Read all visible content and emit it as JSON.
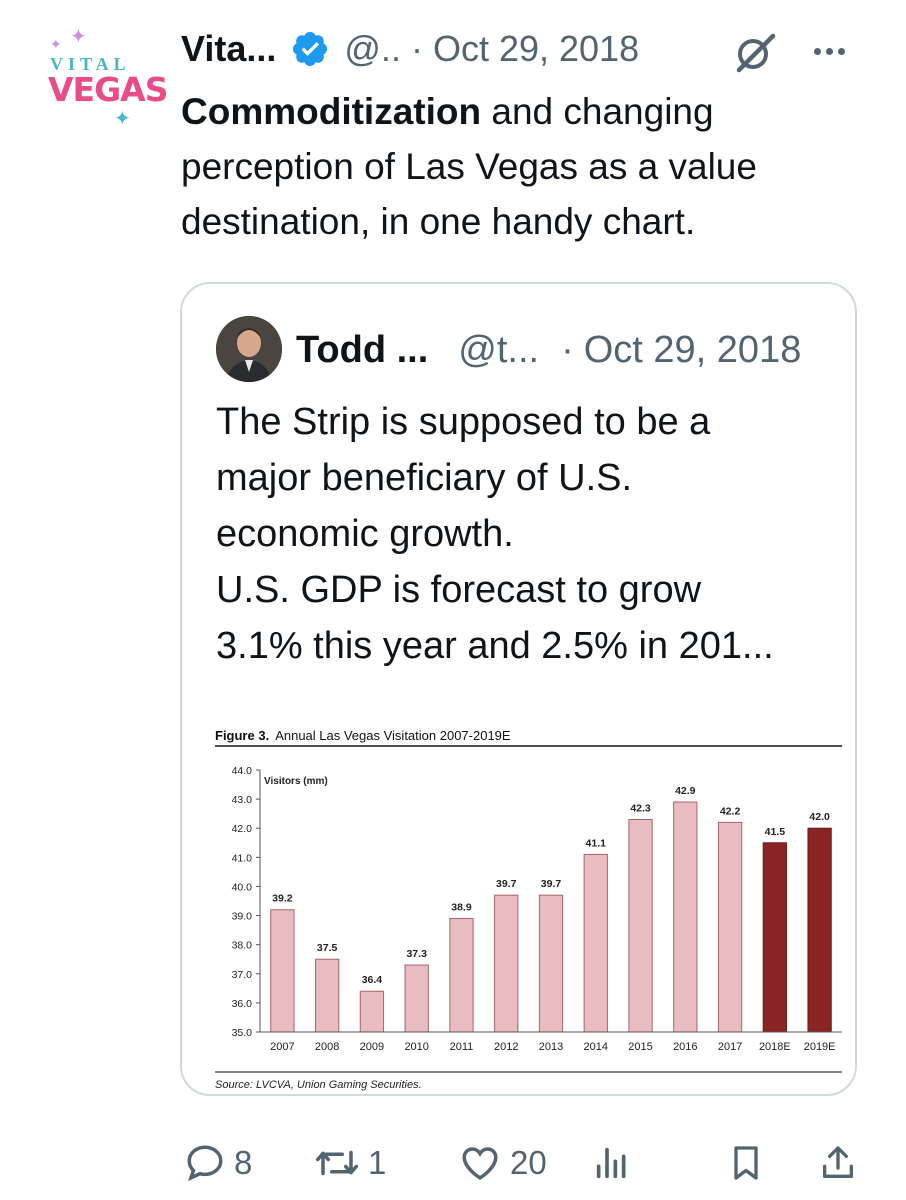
{
  "tweet": {
    "author_name": "Vita...",
    "handle": "@..",
    "separator": "·",
    "date": "Oct 29, 2018",
    "text_bold": "Commoditization",
    "text_rest": " and changing perception of Las Vegas as a value destination, in one handy chart.",
    "avatar_line1": "VITAL",
    "avatar_line2": "VEGAS"
  },
  "quote": {
    "author_name": "Todd ...",
    "handle": "@t...",
    "separator": "·",
    "date": "Oct 29, 2018",
    "text_lines": [
      "The Strip is supposed to be a",
      "major beneficiary of U.S.",
      "economic growth.",
      "U.S. GDP is forecast to grow",
      "3.1% this year and 2.5% in 201..."
    ]
  },
  "chart_data": {
    "type": "bar",
    "title_bold": "Figure 3.",
    "title": "Annual Las Vegas Visitation 2007-2019E",
    "ylabel": "Visitors (mm)",
    "source": "Source: LVCVA, Union Gaming Securities.",
    "ylim": [
      35.0,
      44.0
    ],
    "yticks": [
      "35.0",
      "36.0",
      "37.0",
      "38.0",
      "39.0",
      "40.0",
      "41.0",
      "42.0",
      "43.0",
      "44.0"
    ],
    "categories": [
      "2007",
      "2008",
      "2009",
      "2010",
      "2011",
      "2012",
      "2013",
      "2014",
      "2015",
      "2016",
      "2017",
      "2018E",
      "2019E"
    ],
    "values": [
      39.2,
      37.5,
      36.4,
      37.3,
      38.9,
      39.7,
      39.7,
      41.1,
      42.3,
      42.9,
      42.2,
      41.5,
      42.0
    ],
    "value_labels": [
      "39.2",
      "37.5",
      "36.4",
      "37.3",
      "38.9",
      "39.7",
      "39.7",
      "41.1",
      "42.3",
      "42.9",
      "42.2",
      "41.5",
      "42.0"
    ],
    "actual_color": "#e8bcc0",
    "estimate_color": "#8b2424",
    "estimate_from_index": 11,
    "grid": false
  },
  "actions": {
    "reply_count": "8",
    "retweet_count": "1",
    "like_count": "20",
    "icons": [
      "reply-icon",
      "retweet-icon",
      "like-icon",
      "views-icon",
      "bookmark-icon",
      "share-icon"
    ]
  }
}
